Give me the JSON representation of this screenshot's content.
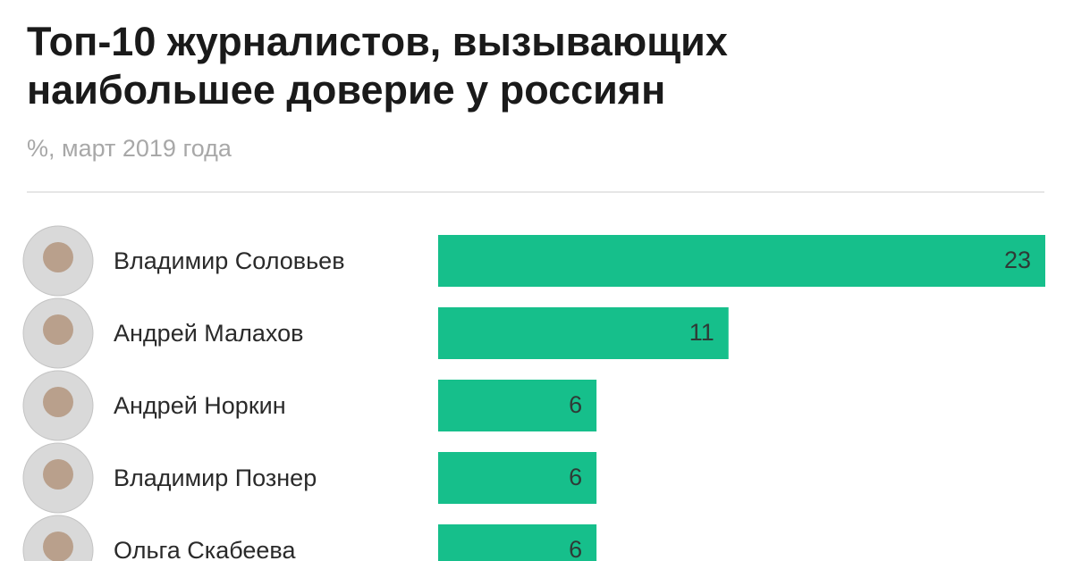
{
  "chart_data": {
    "type": "bar",
    "orientation": "horizontal",
    "title": [
      "Топ-10 журналистов, вызывающих",
      "наибольшее доверие у россиян"
    ],
    "subtitle": "%, март 2019 года",
    "categories": [
      "Владимир Соловьев",
      "Андрей Малахов",
      "Андрей Норкин",
      "Владимир Познер",
      "Ольга Скабеева"
    ],
    "values": [
      23,
      11,
      6,
      6,
      6
    ],
    "color": "#16bf8b"
  }
}
